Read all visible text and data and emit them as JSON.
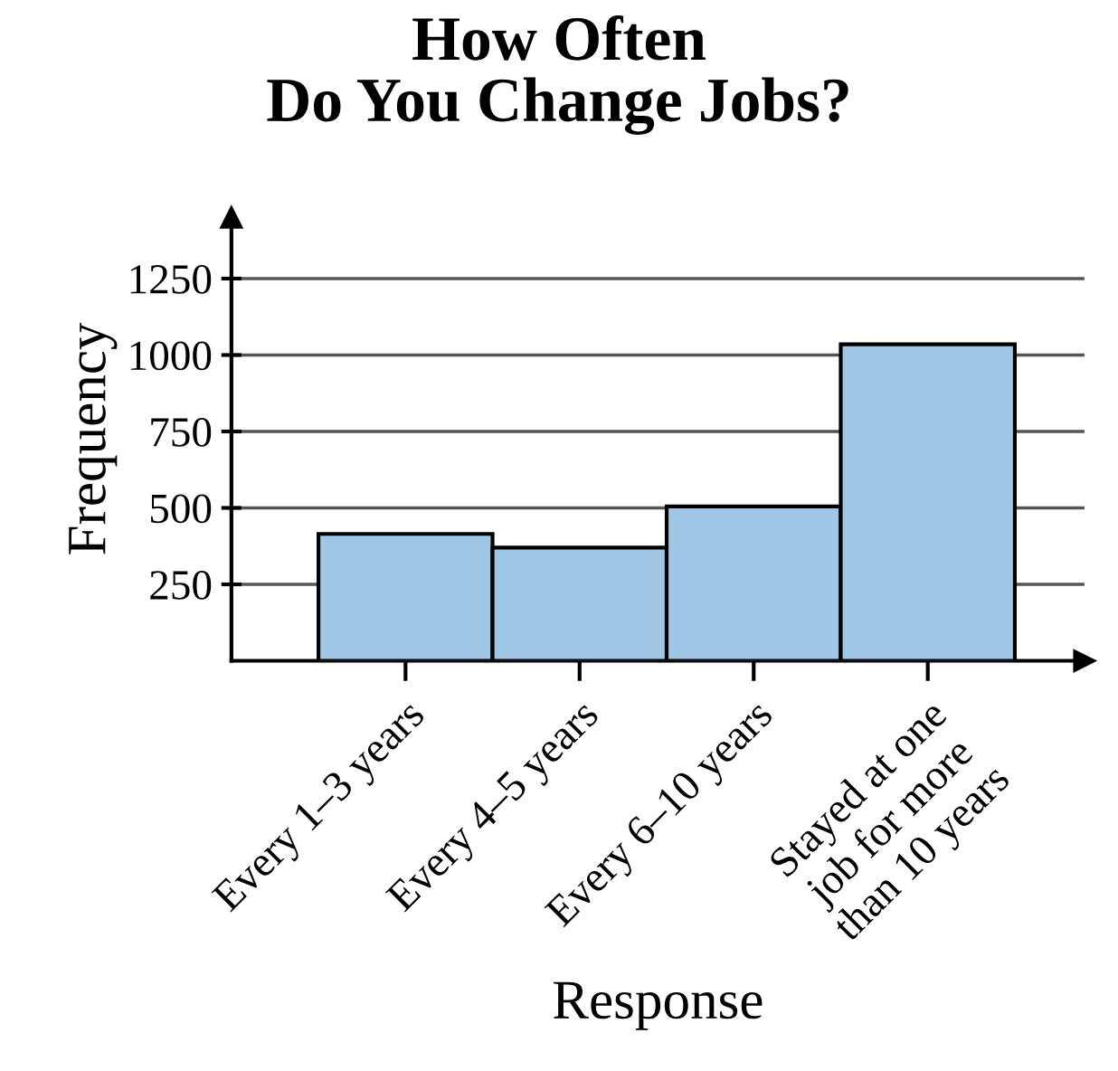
{
  "chart_data": {
    "type": "bar",
    "title": "How Often\nDo You Change Jobs?",
    "xlabel": "Response",
    "ylabel": "Frequency",
    "categories": [
      "Every 1–3 years",
      "Every 4–5 years",
      "Every 6–10 years",
      "Stayed at one\njob for more\nthan 10 years"
    ],
    "values": [
      415,
      370,
      505,
      1035
    ],
    "color": "#a0c6e6",
    "ylim": [
      0,
      1450
    ],
    "yticks": [
      250,
      500,
      750,
      1000,
      1250
    ],
    "grid": "y"
  }
}
